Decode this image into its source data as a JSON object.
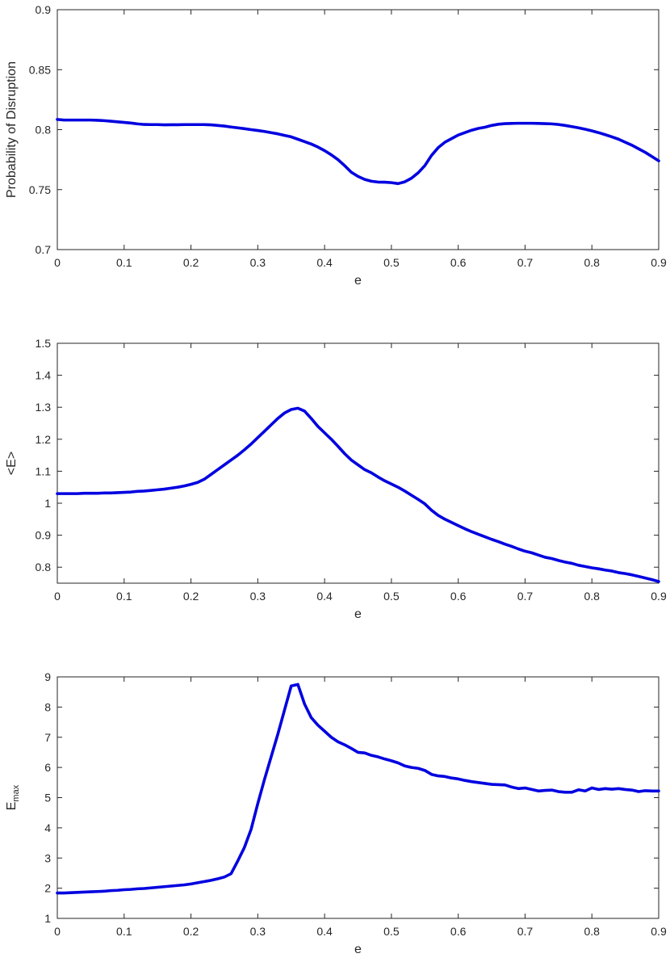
{
  "chart_data": [
    {
      "type": "line",
      "xlabel": "e",
      "ylabel": "Probability of Disruption",
      "xlim": [
        0,
        0.9
      ],
      "ylim": [
        0.7,
        0.9
      ],
      "xticks": [
        "0",
        "0.1",
        "0.2",
        "0.3",
        "0.4",
        "0.5",
        "0.6",
        "0.7",
        "0.8",
        "0.9"
      ],
      "yticks": [
        "0.7",
        "0.75",
        "0.8",
        "0.85",
        "0.9"
      ],
      "grid": false,
      "series": [
        {
          "color": "#0000e0",
          "x": [
            0,
            0.01,
            0.02,
            0.03,
            0.04,
            0.05,
            0.06,
            0.07,
            0.08,
            0.09,
            0.1,
            0.11,
            0.12,
            0.13,
            0.14,
            0.15,
            0.16,
            0.17,
            0.18,
            0.19,
            0.2,
            0.21,
            0.22,
            0.23,
            0.24,
            0.25,
            0.26,
            0.27,
            0.28,
            0.29,
            0.3,
            0.31,
            0.32,
            0.33,
            0.34,
            0.35,
            0.36,
            0.37,
            0.38,
            0.39,
            0.4,
            0.41,
            0.42,
            0.43,
            0.44,
            0.45,
            0.46,
            0.47,
            0.48,
            0.49,
            0.5,
            0.51,
            0.52,
            0.53,
            0.54,
            0.55,
            0.56,
            0.57,
            0.58,
            0.59,
            0.6,
            0.61,
            0.62,
            0.63,
            0.64,
            0.65,
            0.66,
            0.67,
            0.68,
            0.69,
            0.7,
            0.71,
            0.72,
            0.73,
            0.74,
            0.75,
            0.76,
            0.77,
            0.78,
            0.79,
            0.8,
            0.81,
            0.82,
            0.83,
            0.84,
            0.85,
            0.86,
            0.87,
            0.88,
            0.89,
            0.9
          ],
          "y": [
            0.8085,
            0.808,
            0.808,
            0.808,
            0.808,
            0.808,
            0.8078,
            0.8075,
            0.807,
            0.8065,
            0.806,
            0.8055,
            0.8048,
            0.8043,
            0.8042,
            0.8042,
            0.804,
            0.8041,
            0.8041,
            0.8042,
            0.8042,
            0.8042,
            0.8042,
            0.804,
            0.8035,
            0.803,
            0.8022,
            0.8015,
            0.8008,
            0.8,
            0.7993,
            0.7985,
            0.7975,
            0.7965,
            0.7952,
            0.794,
            0.792,
            0.79,
            0.788,
            0.7855,
            0.7825,
            0.779,
            0.775,
            0.77,
            0.7645,
            0.761,
            0.7585,
            0.757,
            0.7563,
            0.7562,
            0.7558,
            0.755,
            0.7565,
            0.7595,
            0.764,
            0.77,
            0.7785,
            0.785,
            0.7895,
            0.7925,
            0.7955,
            0.7975,
            0.7995,
            0.801,
            0.802,
            0.8035,
            0.8045,
            0.805,
            0.8052,
            0.8053,
            0.8053,
            0.8053,
            0.8052,
            0.805,
            0.8048,
            0.8043,
            0.8035,
            0.8025,
            0.8015,
            0.8003,
            0.799,
            0.7975,
            0.7958,
            0.794,
            0.792,
            0.7895,
            0.787,
            0.784,
            0.781,
            0.7775,
            0.774
          ]
        }
      ]
    },
    {
      "type": "line",
      "xlabel": "e",
      "ylabel": "<E>",
      "xlim": [
        0,
        0.9
      ],
      "ylim": [
        0.75,
        1.5
      ],
      "xticks": [
        "0",
        "0.1",
        "0.2",
        "0.3",
        "0.4",
        "0.5",
        "0.6",
        "0.7",
        "0.8",
        "0.9"
      ],
      "yticks": [
        "0.8",
        "0.9",
        "1",
        "1.1",
        "1.2",
        "1.3",
        "1.4",
        "1.5"
      ],
      "grid": false,
      "series": [
        {
          "color": "#0000e0",
          "x": [
            0,
            0.01,
            0.02,
            0.03,
            0.04,
            0.05,
            0.06,
            0.07,
            0.08,
            0.09,
            0.1,
            0.11,
            0.12,
            0.13,
            0.14,
            0.15,
            0.16,
            0.17,
            0.18,
            0.19,
            0.2,
            0.21,
            0.22,
            0.23,
            0.24,
            0.25,
            0.26,
            0.27,
            0.28,
            0.29,
            0.3,
            0.31,
            0.32,
            0.33,
            0.34,
            0.35,
            0.36,
            0.37,
            0.38,
            0.39,
            0.4,
            0.41,
            0.42,
            0.43,
            0.44,
            0.45,
            0.46,
            0.47,
            0.48,
            0.49,
            0.5,
            0.51,
            0.52,
            0.53,
            0.54,
            0.55,
            0.56,
            0.57,
            0.58,
            0.59,
            0.6,
            0.61,
            0.62,
            0.63,
            0.64,
            0.65,
            0.66,
            0.67,
            0.68,
            0.69,
            0.7,
            0.71,
            0.72,
            0.73,
            0.74,
            0.75,
            0.76,
            0.77,
            0.78,
            0.79,
            0.8,
            0.81,
            0.82,
            0.83,
            0.84,
            0.85,
            0.86,
            0.87,
            0.88,
            0.89,
            0.9
          ],
          "y": [
            1.03,
            1.03,
            1.03,
            1.03,
            1.031,
            1.031,
            1.031,
            1.032,
            1.032,
            1.033,
            1.034,
            1.035,
            1.037,
            1.038,
            1.04,
            1.042,
            1.044,
            1.047,
            1.05,
            1.054,
            1.059,
            1.065,
            1.075,
            1.09,
            1.105,
            1.12,
            1.135,
            1.15,
            1.167,
            1.185,
            1.205,
            1.225,
            1.245,
            1.265,
            1.282,
            1.293,
            1.297,
            1.288,
            1.265,
            1.24,
            1.22,
            1.2,
            1.178,
            1.155,
            1.135,
            1.12,
            1.105,
            1.095,
            1.082,
            1.07,
            1.06,
            1.05,
            1.038,
            1.025,
            1.012,
            0.998,
            0.978,
            0.962,
            0.95,
            0.94,
            0.93,
            0.92,
            0.911,
            0.903,
            0.895,
            0.887,
            0.88,
            0.872,
            0.865,
            0.857,
            0.85,
            0.845,
            0.838,
            0.831,
            0.827,
            0.821,
            0.816,
            0.812,
            0.806,
            0.802,
            0.798,
            0.795,
            0.791,
            0.788,
            0.783,
            0.78,
            0.776,
            0.771,
            0.766,
            0.761,
            0.755
          ]
        }
      ]
    },
    {
      "type": "line",
      "xlabel": "e",
      "ylabel": "E",
      "ylabel_subscript": "max",
      "xlim": [
        0,
        0.9
      ],
      "ylim": [
        1,
        9
      ],
      "xticks": [
        "0",
        "0.1",
        "0.2",
        "0.3",
        "0.4",
        "0.5",
        "0.6",
        "0.7",
        "0.8",
        "0.9"
      ],
      "yticks": [
        "1",
        "2",
        "3",
        "4",
        "5",
        "6",
        "7",
        "8",
        "9"
      ],
      "grid": false,
      "series": [
        {
          "color": "#0000e0",
          "x": [
            0,
            0.01,
            0.02,
            0.03,
            0.04,
            0.05,
            0.06,
            0.07,
            0.08,
            0.09,
            0.1,
            0.11,
            0.12,
            0.13,
            0.14,
            0.15,
            0.16,
            0.17,
            0.18,
            0.19,
            0.2,
            0.21,
            0.22,
            0.23,
            0.24,
            0.25,
            0.26,
            0.27,
            0.28,
            0.29,
            0.3,
            0.31,
            0.32,
            0.33,
            0.34,
            0.35,
            0.36,
            0.37,
            0.38,
            0.39,
            0.4,
            0.41,
            0.42,
            0.43,
            0.44,
            0.45,
            0.46,
            0.47,
            0.48,
            0.49,
            0.5,
            0.51,
            0.52,
            0.53,
            0.54,
            0.55,
            0.56,
            0.57,
            0.58,
            0.59,
            0.6,
            0.61,
            0.62,
            0.63,
            0.64,
            0.65,
            0.66,
            0.67,
            0.68,
            0.69,
            0.7,
            0.71,
            0.72,
            0.73,
            0.74,
            0.75,
            0.76,
            0.77,
            0.78,
            0.79,
            0.8,
            0.81,
            0.82,
            0.83,
            0.84,
            0.85,
            0.86,
            0.87,
            0.88,
            0.89,
            0.9
          ],
          "y": [
            1.84,
            1.84,
            1.85,
            1.86,
            1.87,
            1.88,
            1.89,
            1.9,
            1.92,
            1.93,
            1.95,
            1.96,
            1.98,
            1.99,
            2.01,
            2.03,
            2.05,
            2.07,
            2.09,
            2.11,
            2.14,
            2.18,
            2.22,
            2.26,
            2.31,
            2.37,
            2.48,
            2.9,
            3.35,
            3.95,
            4.8,
            5.6,
            6.35,
            7.1,
            7.9,
            8.7,
            8.75,
            8.1,
            7.65,
            7.4,
            7.2,
            7.0,
            6.85,
            6.75,
            6.63,
            6.5,
            6.48,
            6.4,
            6.35,
            6.28,
            6.22,
            6.15,
            6.05,
            6.0,
            5.97,
            5.9,
            5.77,
            5.72,
            5.7,
            5.65,
            5.62,
            5.57,
            5.53,
            5.5,
            5.47,
            5.44,
            5.43,
            5.42,
            5.35,
            5.3,
            5.32,
            5.27,
            5.22,
            5.24,
            5.25,
            5.2,
            5.18,
            5.18,
            5.26,
            5.22,
            5.32,
            5.27,
            5.3,
            5.28,
            5.3,
            5.27,
            5.25,
            5.2,
            5.23,
            5.22,
            5.22
          ]
        }
      ]
    }
  ]
}
